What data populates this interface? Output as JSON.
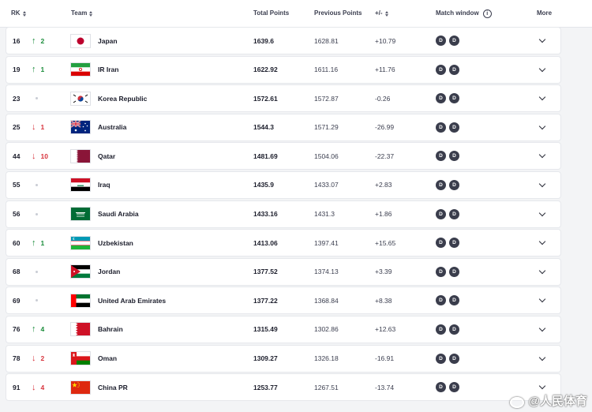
{
  "columns": {
    "rank": "RK",
    "team": "Team",
    "total_points": "Total Points",
    "previous_points": "Previous Points",
    "diff": "+/-",
    "match_window": "Match window",
    "more": "More"
  },
  "match_window_badge": "D",
  "watermark": "@人民体育",
  "colors": {
    "up": "#1a8c3a",
    "down": "#d8343d",
    "badge": "#3a3d4c"
  },
  "rows": [
    {
      "rank": "16",
      "dir": "up",
      "move": "2",
      "team": "Japan",
      "flag": "japan",
      "total": "1639.6",
      "previous": "1628.81",
      "diff": "+10.79"
    },
    {
      "rank": "19",
      "dir": "up",
      "move": "1",
      "team": "IR Iran",
      "flag": "iran",
      "total": "1622.92",
      "previous": "1611.16",
      "diff": "+11.76"
    },
    {
      "rank": "23",
      "dir": "none",
      "move": "",
      "team": "Korea Republic",
      "flag": "korea",
      "total": "1572.61",
      "previous": "1572.87",
      "diff": "-0.26"
    },
    {
      "rank": "25",
      "dir": "down",
      "move": "1",
      "team": "Australia",
      "flag": "australia",
      "total": "1544.3",
      "previous": "1571.29",
      "diff": "-26.99"
    },
    {
      "rank": "44",
      "dir": "down",
      "move": "10",
      "team": "Qatar",
      "flag": "qatar",
      "total": "1481.69",
      "previous": "1504.06",
      "diff": "-22.37"
    },
    {
      "rank": "55",
      "dir": "none",
      "move": "",
      "team": "Iraq",
      "flag": "iraq",
      "total": "1435.9",
      "previous": "1433.07",
      "diff": "+2.83"
    },
    {
      "rank": "56",
      "dir": "none",
      "move": "",
      "team": "Saudi Arabia",
      "flag": "saudi",
      "total": "1433.16",
      "previous": "1431.3",
      "diff": "+1.86"
    },
    {
      "rank": "60",
      "dir": "up",
      "move": "1",
      "team": "Uzbekistan",
      "flag": "uzbekistan",
      "total": "1413.06",
      "previous": "1397.41",
      "diff": "+15.65"
    },
    {
      "rank": "68",
      "dir": "none",
      "move": "",
      "team": "Jordan",
      "flag": "jordan",
      "total": "1377.52",
      "previous": "1374.13",
      "diff": "+3.39"
    },
    {
      "rank": "69",
      "dir": "none",
      "move": "",
      "team": "United Arab Emirates",
      "flag": "uae",
      "total": "1377.22",
      "previous": "1368.84",
      "diff": "+8.38"
    },
    {
      "rank": "76",
      "dir": "up",
      "move": "4",
      "team": "Bahrain",
      "flag": "bahrain",
      "total": "1315.49",
      "previous": "1302.86",
      "diff": "+12.63"
    },
    {
      "rank": "78",
      "dir": "down",
      "move": "2",
      "team": "Oman",
      "flag": "oman",
      "total": "1309.27",
      "previous": "1326.18",
      "diff": "-16.91"
    },
    {
      "rank": "91",
      "dir": "down",
      "move": "4",
      "team": "China PR",
      "flag": "china",
      "total": "1253.77",
      "previous": "1267.51",
      "diff": "-13.74"
    }
  ]
}
